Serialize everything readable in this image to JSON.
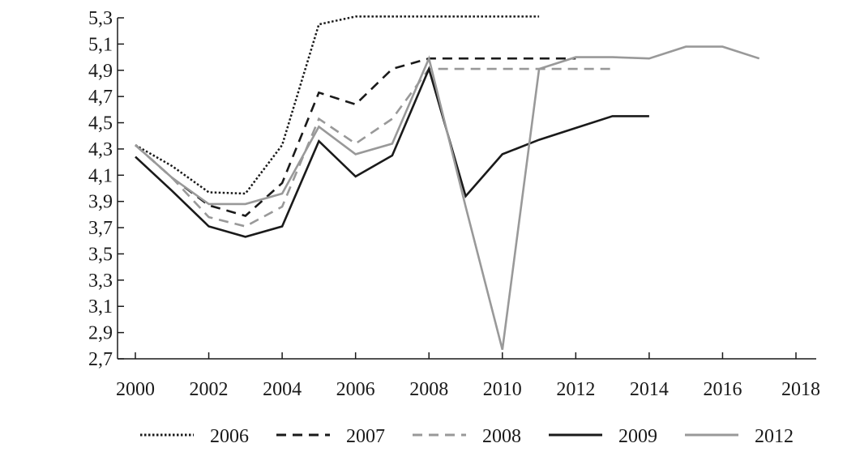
{
  "chart_data": {
    "type": "line",
    "title": "",
    "xlabel": "",
    "ylabel": "",
    "xlim": [
      2000,
      2018
    ],
    "ylim": [
      2.7,
      5.3
    ],
    "x_ticks": [
      "2000",
      "2002",
      "2004",
      "2006",
      "2008",
      "2010",
      "2012",
      "2014",
      "2016",
      "2018"
    ],
    "y_ticks": [
      "2,7",
      "2,9",
      "3,1",
      "3,3",
      "3,5",
      "3,7",
      "3,9",
      "4,1",
      "4,3",
      "4,5",
      "4,7",
      "4,9",
      "5,1",
      "5,3"
    ],
    "legend_position": "bottom",
    "grid": false,
    "series": [
      {
        "name": "2006",
        "style": "dotted",
        "color": "#1a1a1a",
        "points": [
          [
            2000,
            4.33
          ],
          [
            2001,
            4.17
          ],
          [
            2002,
            3.97
          ],
          [
            2003,
            3.96
          ],
          [
            2004,
            4.33
          ],
          [
            2005,
            5.25
          ],
          [
            2006,
            5.31
          ],
          [
            2007,
            5.31
          ],
          [
            2008,
            5.31
          ],
          [
            2009,
            5.31
          ],
          [
            2010,
            5.31
          ],
          [
            2011,
            5.31
          ]
        ]
      },
      {
        "name": "2007",
        "style": "dashed",
        "color": "#1a1a1a",
        "points": [
          [
            2000,
            4.33
          ],
          [
            2001,
            4.08
          ],
          [
            2002,
            3.87
          ],
          [
            2003,
            3.79
          ],
          [
            2004,
            4.04
          ],
          [
            2005,
            4.73
          ],
          [
            2006,
            4.64
          ],
          [
            2007,
            4.91
          ],
          [
            2008,
            4.99
          ],
          [
            2009,
            4.99
          ],
          [
            2010,
            4.99
          ],
          [
            2011,
            4.99
          ],
          [
            2012,
            4.99
          ]
        ]
      },
      {
        "name": "2008",
        "style": "dashed",
        "color": "#999999",
        "points": [
          [
            2000,
            4.33
          ],
          [
            2001,
            4.08
          ],
          [
            2002,
            3.78
          ],
          [
            2003,
            3.71
          ],
          [
            2004,
            3.86
          ],
          [
            2005,
            4.53
          ],
          [
            2006,
            4.34
          ],
          [
            2007,
            4.53
          ],
          [
            2008,
            4.91
          ],
          [
            2009,
            4.91
          ],
          [
            2010,
            4.91
          ],
          [
            2011,
            4.91
          ],
          [
            2012,
            4.91
          ],
          [
            2013,
            4.91
          ]
        ]
      },
      {
        "name": "2009",
        "style": "solid",
        "color": "#1a1a1a",
        "points": [
          [
            2000,
            4.24
          ],
          [
            2001,
            3.98
          ],
          [
            2002,
            3.71
          ],
          [
            2003,
            3.63
          ],
          [
            2004,
            3.71
          ],
          [
            2005,
            4.36
          ],
          [
            2006,
            4.09
          ],
          [
            2007,
            4.25
          ],
          [
            2008,
            4.91
          ],
          [
            2009,
            3.94
          ],
          [
            2010,
            4.26
          ],
          [
            2011,
            4.37
          ],
          [
            2012,
            4.46
          ],
          [
            2013,
            4.55
          ],
          [
            2014,
            4.55
          ]
        ]
      },
      {
        "name": "2012",
        "style": "solid",
        "color": "#999999",
        "points": [
          [
            2000,
            4.33
          ],
          [
            2001,
            4.08
          ],
          [
            2002,
            3.88
          ],
          [
            2003,
            3.88
          ],
          [
            2004,
            3.96
          ],
          [
            2005,
            4.47
          ],
          [
            2006,
            4.26
          ],
          [
            2007,
            4.34
          ],
          [
            2008,
            4.99
          ],
          [
            2009,
            3.86
          ],
          [
            2010,
            2.77
          ],
          [
            2011,
            4.91
          ],
          [
            2012,
            5.0
          ],
          [
            2013,
            5.0
          ],
          [
            2014,
            4.99
          ],
          [
            2015,
            5.08
          ],
          [
            2016,
            5.08
          ],
          [
            2017,
            4.99
          ]
        ]
      }
    ]
  }
}
